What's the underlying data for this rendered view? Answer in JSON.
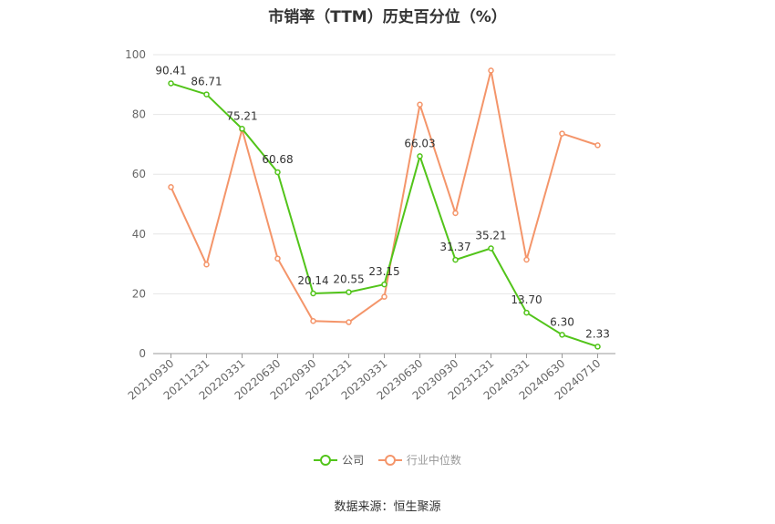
{
  "title": "市销率（TTM）历史百分位（%）",
  "source": "数据来源：恒生聚源",
  "legend": [
    {
      "label": "公司",
      "color": "#52c41a"
    },
    {
      "label": "行业中位数",
      "color": "#f4956a"
    }
  ],
  "chart_data": {
    "type": "line",
    "title": "市销率（TTM）历史百分位（%）",
    "categories": [
      "20210930",
      "20211231",
      "20220331",
      "20220630",
      "20220930",
      "20221231",
      "20230331",
      "20230630",
      "20230930",
      "20231231",
      "20240331",
      "20240630",
      "20240710"
    ],
    "ylim": [
      0,
      100
    ],
    "yticks": [
      0,
      20,
      40,
      60,
      80,
      100
    ],
    "grid": true,
    "legend_position": "bottom",
    "series": [
      {
        "name": "公司",
        "color": "#52c41a",
        "values": [
          90.41,
          86.71,
          75.21,
          60.68,
          20.14,
          20.55,
          23.15,
          66.03,
          31.37,
          35.21,
          13.7,
          6.3,
          2.33
        ],
        "labels": [
          "90.41",
          "86.71",
          "75.21",
          "60.68",
          "20.14",
          "20.55",
          "23.15",
          "66.03",
          "31.37",
          "35.21",
          "13.70",
          "6.30",
          "2.33"
        ]
      },
      {
        "name": "行业中位数",
        "color": "#f4956a",
        "values": [
          55.7,
          29.8,
          75.0,
          31.8,
          10.9,
          10.5,
          19.0,
          83.3,
          47.0,
          94.7,
          31.4,
          73.6,
          69.7
        ]
      }
    ]
  }
}
